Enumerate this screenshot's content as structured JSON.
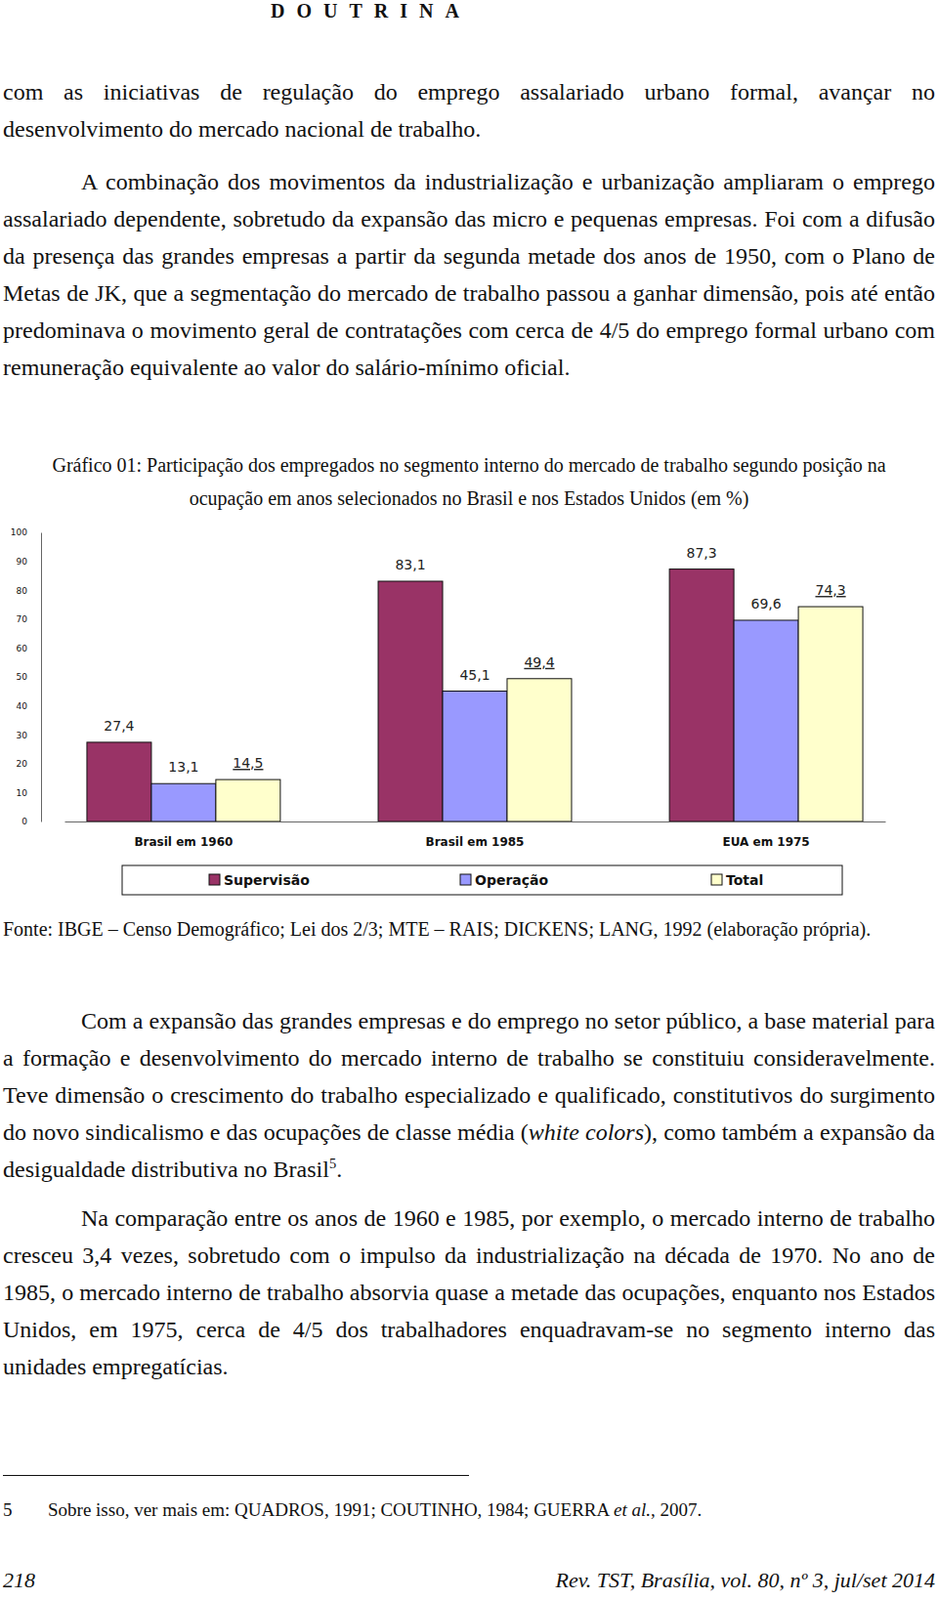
{
  "header": {
    "section": "DOUTRINA"
  },
  "paragraphs_before": [
    [
      {
        "text": "com as iniciativas de regulação do emprego assalariado urbano formal, avançar no desenvolvimento do mercado nacional de trabalho.",
        "style": "normal"
      }
    ],
    [
      {
        "text": "A combinação dos movimentos da industrialização e urbanização ampliaram o emprego assalariado dependente, sobretudo da expansão das micro e pequenas empresas. Foi com a difusão da presença das grandes empresas a partir da segunda metade dos anos de 1950, com o Plano de Metas de JK, que a segmentação do mercado de trabalho passou a ganhar dimensão, pois até então predominava o movimento geral de contratações com cerca de 4/5 do emprego formal urbano com remuneração equivalente ao valor do salário-mínimo oficial.",
        "style": "normal"
      }
    ]
  ],
  "chart_data": {
    "type": "bar",
    "title": "Gráfico 01: Participação dos empregados no segmento interno do mercado de trabalho segundo posição na ocupação em anos selecionados no Brasil e nos Estados Unidos (em %)",
    "categories": [
      "Brasil em 1960",
      "Brasil em 1985",
      "EUA em 1975"
    ],
    "series": [
      {
        "name": "Supervisão",
        "color": "#993366",
        "values": [
          27.4,
          83.1,
          87.3
        ],
        "value_labels": [
          "27,4",
          "83,1",
          "87,3"
        ]
      },
      {
        "name": "Operação",
        "color": "#9999ff",
        "values": [
          13.1,
          45.1,
          69.6
        ],
        "value_labels": [
          "13,1",
          "45,1",
          "69,6"
        ]
      },
      {
        "name": "Total",
        "color": "#ffffcc",
        "values": [
          14.5,
          49.4,
          74.3
        ],
        "value_labels": [
          "14,5",
          "49,4",
          "74,3"
        ]
      }
    ],
    "ylim": [
      0,
      100
    ],
    "yticks": [
      0,
      10,
      20,
      30,
      40,
      50,
      60,
      70,
      80,
      90,
      100
    ],
    "grid": false,
    "legend": "bottom",
    "data_labels": true
  },
  "source": "Fonte: IBGE – Censo Demográfico; Lei dos 2/3; MTE – RAIS; DICKENS; LANG, 1992 (elaboração própria).",
  "paragraphs_after": [
    [
      {
        "text": "Com a expansão das grandes empresas e do emprego no setor público, a base material para a formação e desenvolvimento do mercado interno de trabalho se constituiu consideravelmente. Teve dimensão o crescimento do trabalho especializado e qualificado, constitutivos do surgimento do novo sindicalismo e das ocupações de classe média (",
        "style": "normal"
      },
      {
        "text": "white colors",
        "style": "italic"
      },
      {
        "text": "), como também a expansão da desigualdade distributiva no Brasil",
        "style": "normal"
      },
      {
        "text": "5",
        "style": "sup"
      },
      {
        "text": ".",
        "style": "normal"
      }
    ],
    [
      {
        "text": "Na comparação entre os anos de 1960 e 1985, por exemplo, o mercado interno de trabalho cresceu 3,4 vezes, sobretudo com o impulso da industrialização na década de 1970. No ano de 1985, o mercado interno de trabalho absorvia quase a metade das ocupações, enquanto nos Estados Unidos, em 1975, cerca de 4/5 dos trabalhadores enquadravam-se no segmento interno das unidades empregatícias.",
        "style": "normal"
      }
    ]
  ],
  "footnote": {
    "number": "5",
    "text": [
      {
        "text": "Sobre isso, ver mais em: QUADROS, 1991; COUTINHO, 1984; GUERRA ",
        "style": "normal"
      },
      {
        "text": "et al.",
        "style": "italic"
      },
      {
        "text": ", 2007.",
        "style": "normal"
      }
    ]
  },
  "footer": {
    "page": "218",
    "journal": "Rev. TST, Brasília, vol. 80, nº 3, jul/set 2014"
  }
}
